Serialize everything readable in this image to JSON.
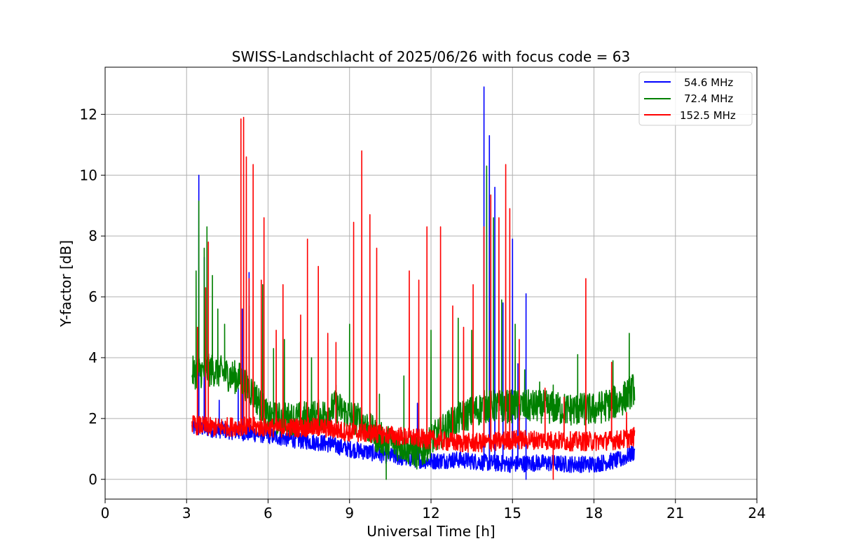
{
  "chart_data": {
    "type": "line",
    "title": "SWISS-Landschlacht of 2025/06/26 with focus code = 63",
    "xlabel": "Universal Time [h]",
    "ylabel": "Y-factor [dB]",
    "xlim": [
      0,
      24
    ],
    "ylim": [
      -0.65,
      13.55
    ],
    "xticks": [
      0,
      3,
      6,
      9,
      12,
      15,
      18,
      21,
      24
    ],
    "yticks": [
      0,
      2,
      4,
      6,
      8,
      10,
      12
    ],
    "grid": true,
    "legend_position": "top-right",
    "series": [
      {
        "name": "54.6 MHz",
        "color": "#0000ff",
        "baseline": [
          [
            3.2,
            1.7
          ],
          [
            4.0,
            1.65
          ],
          [
            5.0,
            1.55
          ],
          [
            6.0,
            1.45
          ],
          [
            7.0,
            1.3
          ],
          [
            8.0,
            1.2
          ],
          [
            9.0,
            1.0
          ],
          [
            10.0,
            0.85
          ],
          [
            11.0,
            0.7
          ],
          [
            12.0,
            0.6
          ],
          [
            13.0,
            0.65
          ],
          [
            14.0,
            0.55
          ],
          [
            15.0,
            0.5
          ],
          [
            16.0,
            0.55
          ],
          [
            17.0,
            0.5
          ],
          [
            18.0,
            0.5
          ],
          [
            19.0,
            0.65
          ],
          [
            19.5,
            0.9
          ]
        ],
        "spikes": [
          [
            3.45,
            10.0
          ],
          [
            3.65,
            7.3
          ],
          [
            4.2,
            2.6
          ],
          [
            4.9,
            3.0
          ],
          [
            5.05,
            5.6
          ],
          [
            5.3,
            6.8
          ],
          [
            5.85,
            2.3
          ],
          [
            8.3,
            2.2
          ],
          [
            11.5,
            2.5
          ],
          [
            13.95,
            12.9
          ],
          [
            14.15,
            11.3
          ],
          [
            14.35,
            9.6
          ],
          [
            14.65,
            5.8
          ],
          [
            15.0,
            7.9
          ],
          [
            15.2,
            3.8
          ],
          [
            15.5,
            6.1
          ],
          [
            15.5,
            0.0
          ]
        ]
      },
      {
        "name": "72.4 MHz",
        "color": "#008000",
        "baseline": [
          [
            3.2,
            3.5
          ],
          [
            4.0,
            3.6
          ],
          [
            5.0,
            3.3
          ],
          [
            5.5,
            2.8
          ],
          [
            6.0,
            2.0
          ],
          [
            7.0,
            2.0
          ],
          [
            8.0,
            2.1
          ],
          [
            8.5,
            2.4
          ],
          [
            9.0,
            2.1
          ],
          [
            9.5,
            1.9
          ],
          [
            10.0,
            1.4
          ],
          [
            10.5,
            1.2
          ],
          [
            11.0,
            1.1
          ],
          [
            11.6,
            0.8
          ],
          [
            12.0,
            1.3
          ],
          [
            13.0,
            2.0
          ],
          [
            14.0,
            2.4
          ],
          [
            15.0,
            2.4
          ],
          [
            16.0,
            2.4
          ],
          [
            17.0,
            2.3
          ],
          [
            18.0,
            2.3
          ],
          [
            19.0,
            2.6
          ],
          [
            19.5,
            3.0
          ]
        ],
        "spikes": [
          [
            3.35,
            6.85
          ],
          [
            3.45,
            9.15
          ],
          [
            3.65,
            7.6
          ],
          [
            3.75,
            8.3
          ],
          [
            3.95,
            6.7
          ],
          [
            4.15,
            5.6
          ],
          [
            4.4,
            5.1
          ],
          [
            5.3,
            5.7
          ],
          [
            5.8,
            6.4
          ],
          [
            6.2,
            4.3
          ],
          [
            6.6,
            4.6
          ],
          [
            7.6,
            4.0
          ],
          [
            8.5,
            3.1
          ],
          [
            9.0,
            5.1
          ],
          [
            10.1,
            2.8
          ],
          [
            10.35,
            0.0
          ],
          [
            11.0,
            3.4
          ],
          [
            12.0,
            4.9
          ],
          [
            13.0,
            5.3
          ],
          [
            13.5,
            4.9
          ],
          [
            14.05,
            10.3
          ],
          [
            14.3,
            8.6
          ],
          [
            14.6,
            5.9
          ],
          [
            15.1,
            5.1
          ],
          [
            15.45,
            3.6
          ],
          [
            16.0,
            3.2
          ],
          [
            16.5,
            3.1
          ],
          [
            17.4,
            4.1
          ],
          [
            18.7,
            3.9
          ],
          [
            19.3,
            4.8
          ]
        ]
      },
      {
        "name": "152.5 MHz",
        "color": "#ff0000",
        "baseline": [
          [
            3.2,
            1.8
          ],
          [
            4.0,
            1.7
          ],
          [
            5.0,
            1.75
          ],
          [
            6.0,
            1.7
          ],
          [
            7.0,
            1.7
          ],
          [
            8.0,
            1.7
          ],
          [
            9.0,
            1.55
          ],
          [
            10.0,
            1.5
          ],
          [
            11.0,
            1.4
          ],
          [
            12.0,
            1.3
          ],
          [
            13.0,
            1.2
          ],
          [
            14.0,
            1.2
          ],
          [
            15.0,
            1.3
          ],
          [
            16.0,
            1.3
          ],
          [
            17.0,
            1.25
          ],
          [
            18.0,
            1.25
          ],
          [
            19.0,
            1.3
          ],
          [
            19.5,
            1.4
          ]
        ],
        "spikes": [
          [
            3.4,
            5.0
          ],
          [
            3.7,
            6.3
          ],
          [
            3.8,
            7.8
          ],
          [
            5.0,
            11.85
          ],
          [
            5.1,
            11.9
          ],
          [
            5.2,
            10.6
          ],
          [
            5.3,
            6.6
          ],
          [
            5.45,
            10.35
          ],
          [
            5.75,
            6.55
          ],
          [
            5.85,
            8.6
          ],
          [
            6.3,
            4.9
          ],
          [
            6.55,
            6.4
          ],
          [
            7.2,
            5.4
          ],
          [
            7.45,
            7.9
          ],
          [
            7.85,
            7.0
          ],
          [
            8.2,
            4.8
          ],
          [
            8.5,
            4.5
          ],
          [
            9.15,
            8.45
          ],
          [
            9.45,
            10.8
          ],
          [
            9.75,
            8.7
          ],
          [
            10.0,
            7.6
          ],
          [
            11.2,
            6.85
          ],
          [
            11.55,
            6.55
          ],
          [
            11.85,
            8.3
          ],
          [
            12.35,
            8.3
          ],
          [
            12.8,
            5.7
          ],
          [
            13.2,
            5.0
          ],
          [
            13.55,
            6.4
          ],
          [
            13.95,
            8.3
          ],
          [
            14.2,
            9.35
          ],
          [
            14.5,
            8.6
          ],
          [
            14.75,
            10.35
          ],
          [
            14.9,
            8.9
          ],
          [
            15.25,
            4.6
          ],
          [
            16.2,
            3.0
          ],
          [
            16.5,
            0.0
          ],
          [
            16.9,
            2.7
          ],
          [
            17.7,
            6.6
          ],
          [
            18.65,
            3.85
          ],
          [
            19.2,
            2.2
          ]
        ]
      }
    ]
  }
}
